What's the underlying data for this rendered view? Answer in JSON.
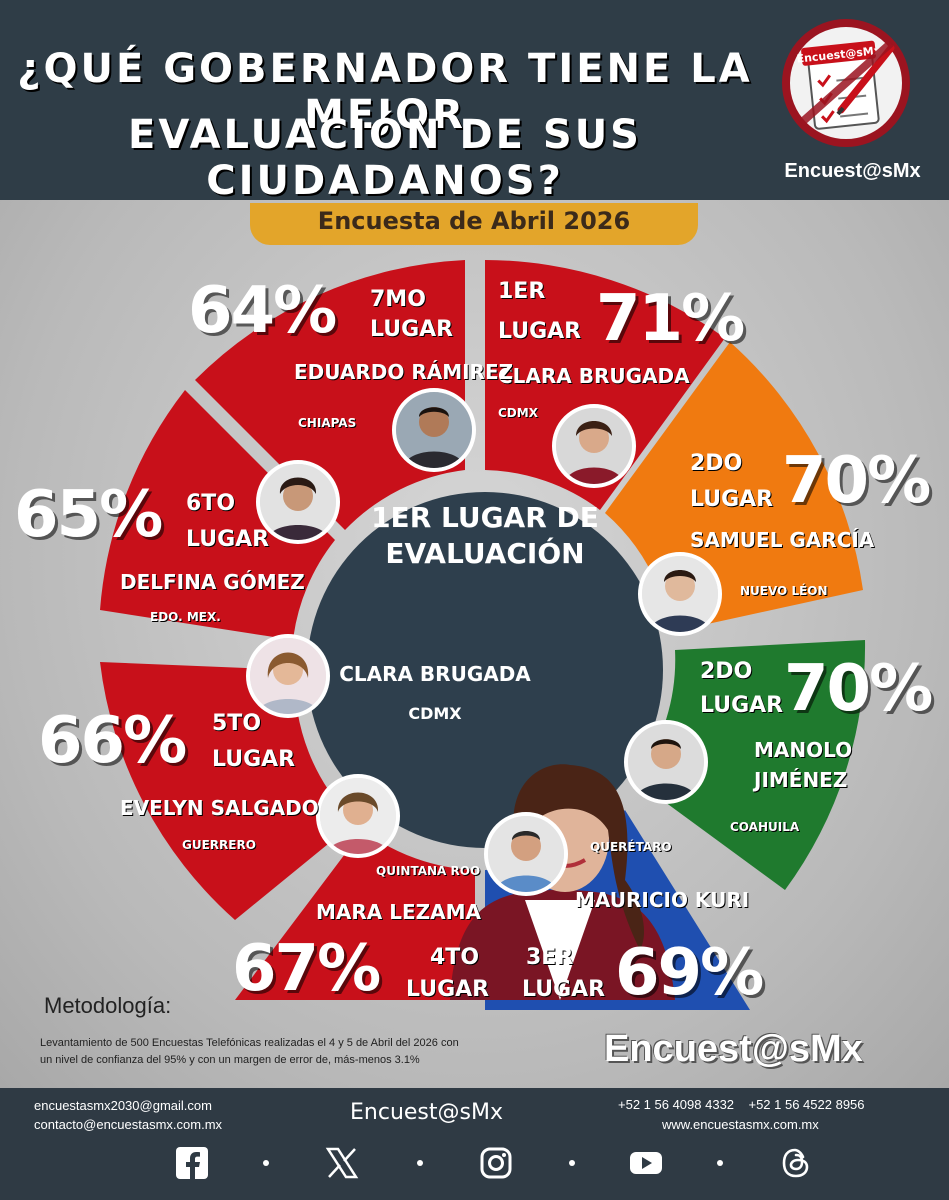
{
  "header": {
    "title_line1": "¿QUÉ GOBERNADOR TIENE LA MEJOR",
    "title_line2": "EVALUACIÓN DE SUS CIUDADANOS?",
    "logo_label": "Encuest@sMx",
    "logo_caption": "Encuest@sMx"
  },
  "subtitle": "Encuesta de Abril 2026",
  "colors": {
    "red": "#c8101a",
    "orange": "#f07a10",
    "green": "#1f7a2e",
    "blue": "#1f4fb0",
    "center": "#2e3f4d",
    "gold": "#e3a52a"
  },
  "center": {
    "title_line1": "1ER LUGAR DE",
    "title_line2": "EVALUACIÓN",
    "name": "CLARA BRUGADA",
    "state": "CDMX"
  },
  "governors": [
    {
      "rank": "1ER",
      "place": "LUGAR",
      "percent": "71%",
      "name": "CLARA BRUGADA",
      "state": "CDMX"
    },
    {
      "rank": "2DO",
      "place": "LUGAR",
      "percent": "70%",
      "name": "SAMUEL GARCÍA",
      "state": "NUEVO LÉON"
    },
    {
      "rank": "2DO",
      "place": "LUGAR",
      "percent": "70%",
      "name_line1": "MANOLO",
      "name_line2": "JIMÉNEZ",
      "state": "COAHUILA"
    },
    {
      "rank": "3ER",
      "place": "LUGAR",
      "percent": "69%",
      "name": "MAURICIO KURI",
      "state": "QUERÉTARO"
    },
    {
      "rank": "4TO",
      "place": "LUGAR",
      "percent": "67%",
      "name": "MARA LEZAMA",
      "state": "QUINTANA ROO"
    },
    {
      "rank": "5TO",
      "place": "LUGAR",
      "percent": "66%",
      "name": "EVELYN SALGADO",
      "state": "GUERRERO"
    },
    {
      "rank": "6TO",
      "place": "LUGAR",
      "percent": "65%",
      "name": "DELFINA GÓMEZ",
      "state": "EDO. MEX."
    },
    {
      "rank": "7MO",
      "place": "LUGAR",
      "percent": "64%",
      "name": "EDUARDO RÁMIREZ",
      "state": "CHIAPAS"
    }
  ],
  "metodologia": {
    "label": "Metodología:",
    "text_line1": "Levantamiento de 500 Encuestas Telefónicas realizadas el 4 y 5 de Abril del 2026 con",
    "text_line2": "un nivel de confianza del 95% y con un margen de error de, más-menos 3.1%"
  },
  "brand_bottom": "Encuest@sMx",
  "footer": {
    "email1": "encuestasmx2030@gmail.com",
    "email2": "contacto@encuestasmx.com.mx",
    "brand": "Encuest@sMx",
    "phones": "+52 1 56 4098 4332    +52 1 56 4522 8956",
    "website": "www.encuestasmx.com.mx",
    "social_icons": [
      "facebook-icon",
      "x-icon",
      "instagram-icon",
      "youtube-icon",
      "threads-icon"
    ]
  }
}
